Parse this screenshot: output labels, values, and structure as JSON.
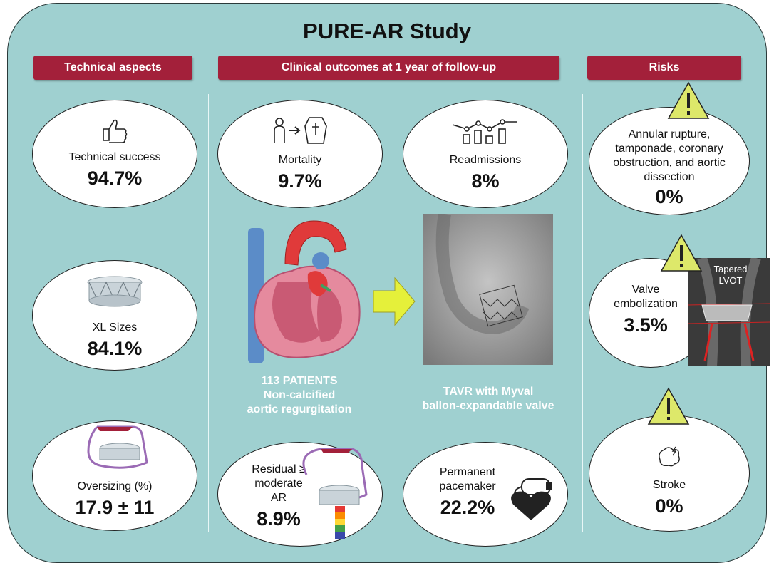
{
  "title": "PURE-AR Study",
  "headers": {
    "technical": "Technical aspects",
    "outcomes": "Clinical outcomes at 1 year of follow-up",
    "risks": "Risks"
  },
  "technical": [
    {
      "label": "Technical success",
      "value": "94.7%"
    },
    {
      "label": "XL Sizes",
      "value": "84.1%"
    },
    {
      "label": "Oversizing (%)",
      "value": "17.9 ± 11"
    }
  ],
  "outcomes": [
    {
      "label": "Mortality",
      "value": "9.7%"
    },
    {
      "label": "Readmissions",
      "value": "8%"
    },
    {
      "label": "Residual ≥ moderate AR",
      "value": "8.9%"
    },
    {
      "label": "Permanent pacemaker",
      "value": "22.2%"
    }
  ],
  "center": {
    "patients": "113 PATIENTS",
    "population": [
      "Non-calcified",
      "aortic regurgitation"
    ],
    "procedure": [
      "TAVR with Myval",
      "ballon-expandable valve"
    ]
  },
  "risks": [
    {
      "label": "Annular rupture, tamponade, coronary obstruction, and aortic dissection",
      "value": "0%"
    },
    {
      "label": "Valve embolization",
      "value": "3.5%",
      "image_label": "Tapered LVOT"
    },
    {
      "label": "Stroke",
      "value": "0%"
    }
  ]
}
